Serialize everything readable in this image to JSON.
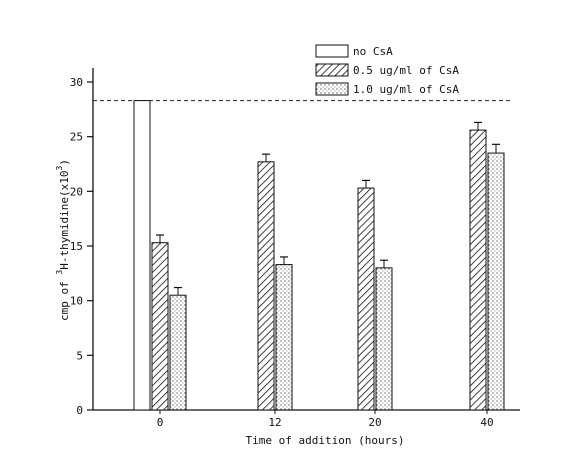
{
  "chart_data": {
    "type": "bar",
    "title": "",
    "xlabel": "Time of addition (hours)",
    "ylabel_main": "cmp of ",
    "ylabel_sup": "3",
    "ylabel_rest": "H-thymidine(x10",
    "ylabel_exp": "3",
    "ylabel_close": ")",
    "ylim": [
      0,
      30
    ],
    "yticks": [
      "0",
      "5",
      "10",
      "15",
      "20",
      "25",
      "30"
    ],
    "categories": [
      "0",
      "12",
      "20",
      "40"
    ],
    "series": [
      {
        "name": "no CsA",
        "pattern": "blank",
        "values": [
          28.3,
          null,
          null,
          null
        ],
        "errors": [
          0,
          null,
          null,
          null
        ]
      },
      {
        "name": "0.5 ug/ml of CsA",
        "pattern": "hatch",
        "values": [
          15.3,
          22.7,
          20.3,
          25.6
        ],
        "errors": [
          0.7,
          0.7,
          0.7,
          0.7
        ]
      },
      {
        "name": "1.0 ug/ml of CsA",
        "pattern": "dots",
        "values": [
          10.5,
          13.3,
          13.0,
          23.5
        ],
        "errors": [
          0.7,
          0.7,
          0.7,
          0.8
        ]
      }
    ],
    "reference_line": {
      "value": 28.3,
      "style": "dashed"
    },
    "legend_position": "top-right",
    "grid": false
  }
}
